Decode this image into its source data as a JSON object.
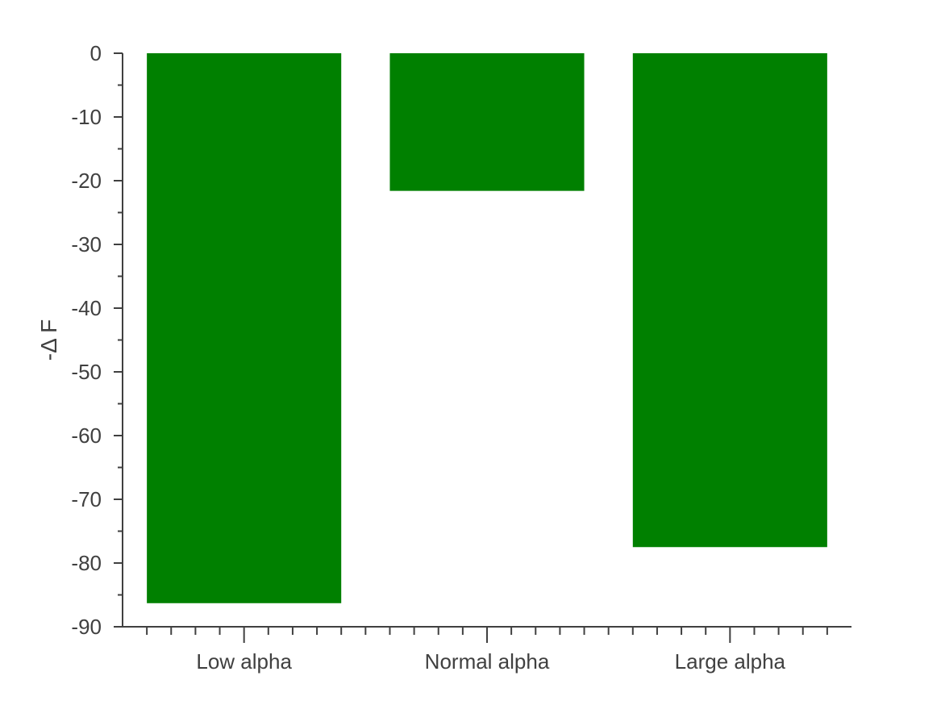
{
  "chart_data": {
    "type": "bar",
    "title": "",
    "xlabel": "",
    "ylabel": "-Δ F",
    "categories": [
      "Low alpha",
      "Normal alpha",
      "Large alpha"
    ],
    "values": [
      -86.3,
      -21.6,
      -77.5
    ],
    "ylim": [
      -90,
      0
    ],
    "yticks": [
      "0",
      "-10",
      "-20",
      "-30",
      "-40",
      "-50",
      "-60",
      "-70",
      "-80",
      "-90"
    ],
    "grid": false,
    "legend": "none",
    "bar_color": "#008000",
    "axis_color": "#404040"
  }
}
